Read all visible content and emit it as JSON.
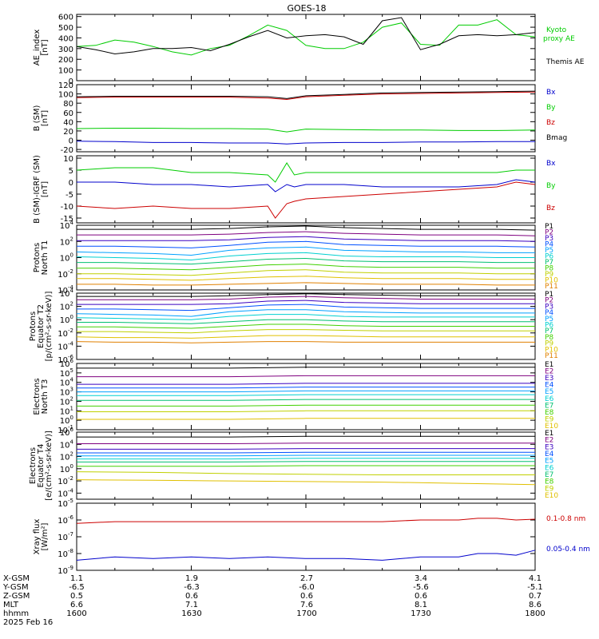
{
  "title": "GOES-18",
  "footer": {
    "rows": [
      {
        "label": "X-GSM",
        "values": [
          "1.1",
          "1.9",
          "2.7",
          "3.4",
          "4.1"
        ]
      },
      {
        "label": "Y-GSM",
        "values": [
          "-6.5",
          "-6.3",
          "-6.0",
          "-5.6",
          "-5.1"
        ]
      },
      {
        "label": "Z-GSM",
        "values": [
          "0.5",
          "0.6",
          "0.6",
          "0.6",
          "0.7"
        ]
      },
      {
        "label": "MLT",
        "values": [
          "6.6",
          "7.1",
          "7.6",
          "8.1",
          "8.6"
        ]
      },
      {
        "label": "hhmm",
        "values": [
          "1600",
          "1630",
          "1700",
          "1730",
          "1800"
        ]
      }
    ],
    "date": "2025 Feb 16"
  },
  "colors": {
    "black": "#000000",
    "green": "#00cc00",
    "blue": "#0000cc",
    "red": "#cc0000",
    "P": [
      "#000000",
      "#7f007f",
      "#3a00c0",
      "#0050ff",
      "#00a0ff",
      "#00d0d0",
      "#00c070",
      "#40d000",
      "#c0d000",
      "#e0c000",
      "#e08000",
      "#e00000"
    ]
  },
  "chart_data": [
    {
      "id": "ae",
      "type": "line",
      "ylabel": "AE_index [nT]",
      "ylim": [
        0,
        620
      ],
      "yticks": [
        "0",
        "100",
        "200",
        "300",
        "400",
        "500",
        "600"
      ],
      "x": [
        1600,
        1605,
        1610,
        1615,
        1620,
        1625,
        1630,
        1635,
        1640,
        1645,
        1650,
        1655,
        1700,
        1705,
        1710,
        1715,
        1720,
        1725,
        1730,
        1735,
        1740,
        1745,
        1750,
        1755,
        1800
      ],
      "series": [
        {
          "name": "Kyoto proxy AE",
          "color": "#00cc00",
          "values": [
            320,
            330,
            380,
            360,
            320,
            270,
            240,
            300,
            330,
            420,
            520,
            470,
            330,
            300,
            300,
            360,
            500,
            540,
            340,
            330,
            520,
            520,
            570,
            430,
            410
          ]
        },
        {
          "name": "Themis AE",
          "color": "#000000",
          "values": [
            320,
            290,
            250,
            270,
            300,
            300,
            310,
            280,
            340,
            410,
            470,
            400,
            420,
            430,
            410,
            340,
            560,
            590,
            290,
            340,
            420,
            430,
            420,
            430,
            450
          ]
        }
      ]
    },
    {
      "id": "bsm",
      "type": "line",
      "ylabel": "B (SM) [nT]",
      "ylim": [
        -25,
        120
      ],
      "yticks": [
        "-20",
        "0",
        "20",
        "40",
        "60",
        "80",
        "100",
        "120"
      ],
      "x": [
        1600,
        1610,
        1620,
        1630,
        1640,
        1650,
        1655,
        1700,
        1710,
        1720,
        1730,
        1740,
        1750,
        1800
      ],
      "series": [
        {
          "name": "Bx",
          "color": "#0000cc",
          "values": [
            -2,
            -3,
            -5,
            -5,
            -6,
            -6,
            -8,
            -6,
            -5,
            -5,
            -4,
            -4,
            -3,
            -3
          ]
        },
        {
          "name": "By",
          "color": "#00cc00",
          "values": [
            25,
            26,
            26,
            25,
            25,
            24,
            18,
            24,
            23,
            22,
            22,
            21,
            21,
            22
          ]
        },
        {
          "name": "Bz",
          "color": "#cc0000",
          "values": [
            92,
            93,
            93,
            93,
            93,
            91,
            88,
            94,
            97,
            100,
            101,
            102,
            103,
            104
          ]
        },
        {
          "name": "Bmag",
          "color": "#000000",
          "values": [
            94,
            95,
            95,
            95,
            95,
            94,
            90,
            96,
            99,
            102,
            103,
            104,
            105,
            106
          ]
        }
      ]
    },
    {
      "id": "bres",
      "type": "line",
      "ylabel": "B (SM)-IGRF (SM) [nT]",
      "ylim": [
        -17,
        11
      ],
      "yticks": [
        "-15",
        "-10",
        "-5",
        "0",
        "5",
        "10"
      ],
      "x": [
        1600,
        1610,
        1620,
        1630,
        1640,
        1650,
        1652,
        1655,
        1657,
        1700,
        1710,
        1720,
        1730,
        1740,
        1750,
        1755,
        1800
      ],
      "series": [
        {
          "name": "Bx",
          "color": "#0000cc",
          "values": [
            0,
            0,
            -1,
            -1,
            -2,
            -1,
            -4,
            -1,
            -2,
            -1,
            -1,
            -2,
            -2,
            -2,
            -1,
            1,
            0
          ]
        },
        {
          "name": "By",
          "color": "#00cc00",
          "values": [
            5,
            6,
            6,
            4,
            4,
            3,
            0,
            8,
            3,
            4,
            4,
            4,
            4,
            4,
            4,
            5,
            5
          ]
        },
        {
          "name": "Bz",
          "color": "#cc0000",
          "values": [
            -10,
            -11,
            -10,
            -11,
            -11,
            -10,
            -15,
            -9,
            -8,
            -7,
            -6,
            -5,
            -4,
            -3,
            -2,
            0,
            -1
          ]
        }
      ]
    },
    {
      "id": "protons_north",
      "type": "line",
      "log": true,
      "ylabel": "Protons North T1",
      "ylim_exp": [
        -4,
        4
      ],
      "yticks_exp": [
        -4,
        -2,
        0,
        2,
        4
      ],
      "x": [
        1600,
        1610,
        1620,
        1630,
        1640,
        1650,
        1700,
        1710,
        1720,
        1730,
        1740,
        1750,
        1800
      ],
      "series_labels": [
        "P1",
        "P2",
        "P3",
        "P4",
        "P5",
        "P6",
        "P7",
        "P8",
        "P9",
        "P10",
        "P11"
      ],
      "series": [
        [
          3.5,
          3.5,
          3.5,
          3.5,
          3.6,
          3.8,
          3.9,
          3.7,
          3.6,
          3.5,
          3.5,
          3.5,
          3.4
        ],
        [
          2.8,
          2.8,
          2.8,
          2.8,
          2.9,
          3.1,
          3.2,
          3.0,
          2.9,
          2.8,
          2.8,
          2.8,
          2.7
        ],
        [
          2.1,
          2.1,
          2.1,
          2.1,
          2.2,
          2.5,
          2.6,
          2.3,
          2.2,
          2.1,
          2.1,
          2.1,
          2.0
        ],
        [
          1.4,
          1.4,
          1.3,
          1.2,
          1.5,
          1.9,
          2.0,
          1.6,
          1.5,
          1.4,
          1.4,
          1.4,
          1.3
        ],
        [
          0.7,
          0.6,
          0.5,
          0.3,
          0.9,
          1.2,
          1.3,
          0.9,
          0.8,
          0.7,
          0.7,
          0.6,
          0.6
        ],
        [
          0.1,
          0.0,
          -0.1,
          -0.3,
          0.2,
          0.5,
          0.6,
          0.2,
          0.1,
          0.1,
          0.1,
          0.0,
          0.0
        ],
        [
          -0.6,
          -0.6,
          -0.7,
          -0.8,
          -0.5,
          -0.2,
          -0.1,
          -0.4,
          -0.5,
          -0.5,
          -0.5,
          -0.6,
          -0.6
        ],
        [
          -1.3,
          -1.3,
          -1.4,
          -1.5,
          -1.2,
          -0.9,
          -0.8,
          -1.1,
          -1.2,
          -1.2,
          -1.2,
          -1.3,
          -1.3
        ],
        [
          -2.0,
          -2.0,
          -2.1,
          -2.2,
          -1.9,
          -1.6,
          -1.5,
          -1.8,
          -1.9,
          -1.9,
          -1.9,
          -2.0,
          -2.0
        ],
        [
          -2.6,
          -2.6,
          -2.7,
          -2.8,
          -2.6,
          -2.4,
          -2.3,
          -2.5,
          -2.6,
          -2.6,
          -2.6,
          -2.7,
          -2.7
        ],
        [
          -3.3,
          -3.3,
          -3.4,
          -3.4,
          -3.3,
          -3.2,
          -3.1,
          -3.2,
          -3.3,
          -3.3,
          -3.3,
          -3.4,
          -3.4
        ]
      ]
    },
    {
      "id": "protons_equator",
      "type": "line",
      "log": true,
      "ylabel": "Protons Equator T2 [p/(cm²-s-sr-keV)]",
      "ylim_exp": [
        -6,
        4
      ],
      "yticks_exp": [
        -6,
        -4,
        -2,
        0,
        2,
        4
      ],
      "x": [
        1600,
        1610,
        1620,
        1630,
        1640,
        1650,
        1700,
        1710,
        1720,
        1730,
        1740,
        1750,
        1800
      ],
      "series_labels": [
        "P1",
        "P2",
        "P3",
        "P4",
        "P5",
        "P6",
        "P7",
        "P8",
        "P9",
        "P10",
        "P11"
      ],
      "series": [
        [
          3.5,
          3.5,
          3.5,
          3.5,
          3.6,
          3.8,
          3.9,
          3.8,
          3.7,
          3.6,
          3.6,
          3.6,
          3.6
        ],
        [
          3.0,
          3.0,
          3.0,
          3.0,
          3.1,
          3.4,
          3.5,
          3.3,
          3.2,
          3.1,
          3.1,
          3.1,
          3.1
        ],
        [
          2.3,
          2.3,
          2.3,
          2.3,
          2.4,
          2.8,
          2.9,
          2.6,
          2.5,
          2.4,
          2.4,
          2.4,
          2.4
        ],
        [
          1.6,
          1.6,
          1.5,
          1.4,
          1.8,
          2.2,
          2.3,
          1.9,
          1.8,
          1.7,
          1.7,
          1.7,
          1.7
        ],
        [
          0.9,
          0.8,
          0.7,
          0.5,
          1.2,
          1.5,
          1.5,
          1.2,
          1.1,
          1.0,
          1.0,
          1.0,
          1.0
        ],
        [
          0.3,
          0.2,
          0.1,
          0.0,
          0.5,
          0.8,
          0.8,
          0.5,
          0.4,
          0.4,
          0.4,
          0.4,
          0.4
        ],
        [
          -0.4,
          -0.4,
          -0.5,
          -0.6,
          -0.3,
          0.0,
          0.0,
          -0.2,
          -0.3,
          -0.3,
          -0.3,
          -0.3,
          -0.3
        ],
        [
          -1.1,
          -1.1,
          -1.2,
          -1.3,
          -1.0,
          -0.7,
          -0.7,
          -0.9,
          -1.0,
          -1.0,
          -1.0,
          -1.0,
          -1.0
        ],
        [
          -1.8,
          -1.8,
          -1.9,
          -2.0,
          -1.7,
          -1.5,
          -1.5,
          -1.6,
          -1.7,
          -1.7,
          -1.7,
          -1.7,
          -1.7
        ],
        [
          -2.6,
          -2.7,
          -2.7,
          -2.8,
          -2.6,
          -2.4,
          -2.4,
          -2.5,
          -2.6,
          -2.6,
          -2.6,
          -2.6,
          -2.6
        ],
        [
          -3.3,
          -3.4,
          -3.4,
          -3.5,
          -3.4,
          -3.3,
          -3.3,
          -3.4,
          -3.4,
          -3.4,
          -3.4,
          -3.4,
          -3.4
        ]
      ]
    },
    {
      "id": "electrons_north",
      "type": "line",
      "log": true,
      "ylabel": "Electrons North T3",
      "ylim_exp": [
        -1,
        6
      ],
      "yticks_exp": [
        -1,
        0,
        1,
        2,
        3,
        4,
        5,
        6
      ],
      "x": [
        1600,
        1620,
        1640,
        1700,
        1720,
        1740,
        1800
      ],
      "series_labels": [
        "E1",
        "E2",
        "E3",
        "E4",
        "E5",
        "E6",
        "E7",
        "E8",
        "E9",
        "E10"
      ],
      "series": [
        [
          5.5,
          5.5,
          5.5,
          5.6,
          5.6,
          5.6,
          5.6
        ],
        [
          4.6,
          4.6,
          4.6,
          4.7,
          4.7,
          4.7,
          4.7
        ],
        [
          3.8,
          3.8,
          3.8,
          3.9,
          3.9,
          3.9,
          3.9
        ],
        [
          3.4,
          3.4,
          3.4,
          3.5,
          3.5,
          3.5,
          3.5
        ],
        [
          3.0,
          3.0,
          3.0,
          3.1,
          3.1,
          3.1,
          3.1
        ],
        [
          2.6,
          2.6,
          2.6,
          2.7,
          2.7,
          2.7,
          2.7
        ],
        [
          2.1,
          2.1,
          2.1,
          2.2,
          2.2,
          2.2,
          2.2
        ],
        [
          1.5,
          1.5,
          1.5,
          1.6,
          1.6,
          1.6,
          1.6
        ],
        [
          0.9,
          0.9,
          0.9,
          1.0,
          1.0,
          1.0,
          1.0
        ],
        [
          0.1,
          0.1,
          0.1,
          0.2,
          0.2,
          0.2,
          0.2
        ]
      ]
    },
    {
      "id": "electrons_equator",
      "type": "line",
      "log": true,
      "ylabel": "Electrons Equator T4 [e/(cm²-s-sr-keV)]",
      "ylim_exp": [
        -5,
        6
      ],
      "yticks_exp": [
        -4,
        -2,
        0,
        2,
        4,
        6
      ],
      "x": [
        1600,
        1620,
        1640,
        1700,
        1720,
        1740,
        1800
      ],
      "series_labels": [
        "E1",
        "E2",
        "E3",
        "E4",
        "E5",
        "E6",
        "E7",
        "E8",
        "E9",
        "E10"
      ],
      "series": [
        [
          5.2,
          5.2,
          5.2,
          5.3,
          5.3,
          5.3,
          5.3
        ],
        [
          4.1,
          4.1,
          4.1,
          4.2,
          4.2,
          4.2,
          4.2
        ],
        [
          3.2,
          3.2,
          3.2,
          3.3,
          3.3,
          3.3,
          3.3
        ],
        [
          2.6,
          2.6,
          2.6,
          2.7,
          2.7,
          2.7,
          2.7
        ],
        [
          2.1,
          2.1,
          2.1,
          2.2,
          2.2,
          2.2,
          2.2
        ],
        [
          1.6,
          1.6,
          1.6,
          1.7,
          1.7,
          1.7,
          1.7
        ],
        [
          1.1,
          1.1,
          1.1,
          1.2,
          1.2,
          1.2,
          1.2
        ],
        [
          0.4,
          0.4,
          0.4,
          0.5,
          0.5,
          0.5,
          0.5
        ],
        [
          -0.5,
          -0.6,
          -0.8,
          -0.9,
          -1.0,
          -1.0,
          -1.0
        ],
        [
          -1.8,
          -1.9,
          -2.0,
          -2.1,
          -2.2,
          -2.4,
          -2.6
        ]
      ]
    },
    {
      "id": "xray",
      "type": "line",
      "log": true,
      "ylabel": "Xray flux [W/m²]",
      "ylim_exp": [
        -9,
        -5
      ],
      "yticks_exp": [
        -9,
        -8,
        -7,
        -6,
        -5
      ],
      "x": [
        1600,
        1610,
        1620,
        1630,
        1640,
        1650,
        1700,
        1710,
        1720,
        1730,
        1740,
        1745,
        1750,
        1755,
        1800
      ],
      "series": [
        {
          "name": "0.1-0.8 nm",
          "color": "#cc0000",
          "values": [
            -6.2,
            -6.1,
            -6.1,
            -6.1,
            -6.1,
            -6.1,
            -6.1,
            -6.1,
            -6.1,
            -6.0,
            -6.0,
            -5.9,
            -5.9,
            -6.0,
            -5.95
          ]
        },
        {
          "name": "0.05-0.4 nm",
          "color": "#0000cc",
          "values": [
            -8.4,
            -8.2,
            -8.3,
            -8.2,
            -8.3,
            -8.2,
            -8.3,
            -8.3,
            -8.4,
            -8.2,
            -8.2,
            -8.0,
            -8.0,
            -8.1,
            -7.8
          ]
        }
      ]
    }
  ]
}
